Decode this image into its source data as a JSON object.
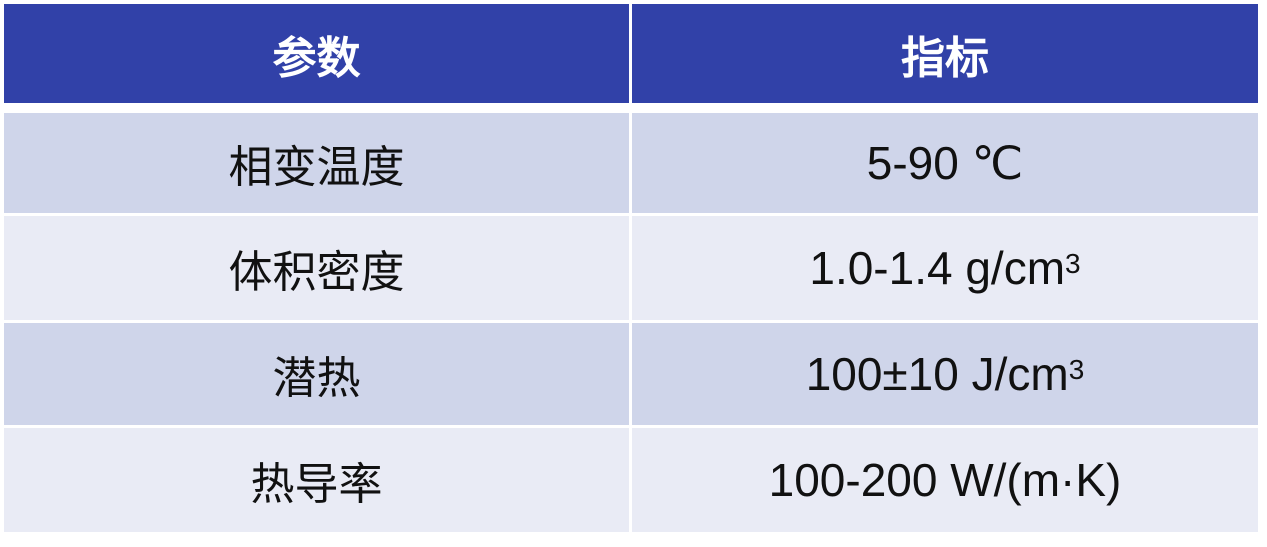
{
  "table": {
    "headers": [
      "参数",
      "指标"
    ],
    "rows": [
      {
        "param": "相变温度",
        "value": "5-90 ℃",
        "sup": ""
      },
      {
        "param": "体积密度",
        "value": "1.0-1.4 g/cm",
        "sup": "3"
      },
      {
        "param": "潜热",
        "value": "100±10 J/cm",
        "sup": "3"
      },
      {
        "param": "热导率",
        "value": "100-200 W/(m·K)",
        "sup": ""
      }
    ]
  },
  "colors": {
    "header": "#3141A8",
    "row_odd": "#CFD5EA",
    "row_even": "#E9EBF5"
  }
}
